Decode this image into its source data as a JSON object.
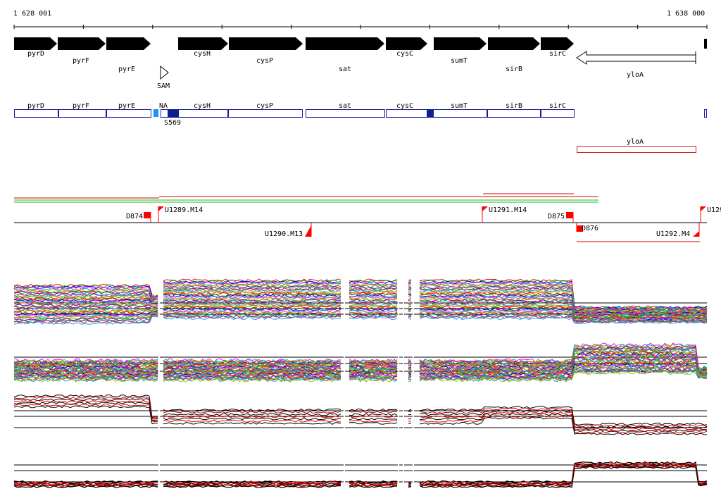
{
  "coordinates": {
    "start_label": "1 628 001",
    "end_label": "1 638 000"
  },
  "genes": [
    {
      "name": "pyrD",
      "strand": "+"
    },
    {
      "name": "pyrF",
      "strand": "+"
    },
    {
      "name": "pyrE",
      "strand": "+"
    },
    {
      "name": "cysH",
      "strand": "+"
    },
    {
      "name": "cysP",
      "strand": "+"
    },
    {
      "name": "sat",
      "strand": "+"
    },
    {
      "name": "cysC",
      "strand": "+"
    },
    {
      "name": "sumT",
      "strand": "+"
    },
    {
      "name": "sirB",
      "strand": "+"
    },
    {
      "name": "sirC",
      "strand": "+"
    },
    {
      "name": "yloA",
      "strand": "-"
    }
  ],
  "riboswitch": {
    "label": "SAM"
  },
  "annotation_track": {
    "boxes": [
      "pyrD",
      "pyrF",
      "pyrE",
      "NA",
      "cysH",
      "cysP",
      "sat",
      "cysC",
      "sumT",
      "sirB",
      "sirC"
    ],
    "marker_label": "S569",
    "reverse_box": "yloA"
  },
  "transcription_features": [
    {
      "label": "D874",
      "type": "downshift"
    },
    {
      "label": "U1289.M14",
      "type": "upshift"
    },
    {
      "label": "U1290.M13",
      "type": "upshift"
    },
    {
      "label": "U1291.M14",
      "type": "upshift"
    },
    {
      "label": "D875",
      "type": "downshift"
    },
    {
      "label": "D876",
      "type": "downshift"
    },
    {
      "label": "U1292.M4",
      "type": "upshift"
    },
    {
      "label": "U129",
      "type": "upshift"
    }
  ],
  "colors": {
    "gene_arrow": "#000000",
    "annotation_box": "#1a1aa0",
    "marker": "#0b1f8f",
    "na_marker": "#1e90ff",
    "reverse_box": "#cc2222",
    "feature_flag": "#ff0000",
    "segment_red": "#dd0000",
    "segment_green": "#22bb22",
    "trace_palette": [
      "#ff0000",
      "#00aa00",
      "#0000ff",
      "#ff00ff",
      "#00bbbb",
      "#ff8800",
      "#888800",
      "#8800cc",
      "#00cc66",
      "#cc0066",
      "#666666",
      "#3399ff",
      "#99cc00",
      "#cc6600"
    ]
  }
}
